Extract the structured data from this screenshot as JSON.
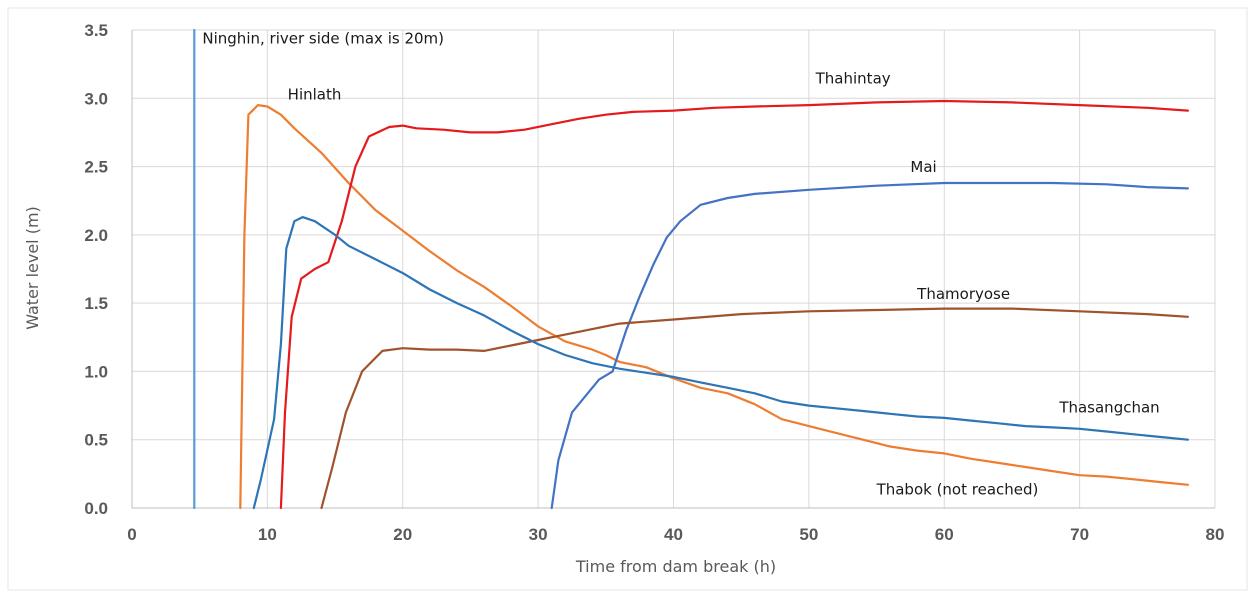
{
  "chart_data": {
    "type": "line",
    "title": "",
    "xlabel": "Time from dam break (h)",
    "ylabel": "Water level (m)",
    "xlim": [
      0,
      80
    ],
    "ylim": [
      0,
      3.5
    ],
    "x_ticks": [
      0,
      10,
      20,
      30,
      40,
      50,
      60,
      70,
      80
    ],
    "y_ticks": [
      0.0,
      0.5,
      1.0,
      1.5,
      2.0,
      2.5,
      3.0,
      3.5
    ],
    "x_tick_labels": [
      "0",
      "10",
      "20",
      "30",
      "40",
      "50",
      "60",
      "70",
      "80"
    ],
    "y_tick_labels": [
      "0.0",
      "0.5",
      "1.0",
      "1.5",
      "2.0",
      "2.5",
      "3.0",
      "3.5"
    ],
    "grid": true,
    "legend": "none",
    "series": [
      {
        "name": "Ninghin, river side (max is 20m)",
        "color": "#5b9bd5",
        "label_at": [
          5.2,
          3.4
        ],
        "points": [
          [
            4.6,
            0
          ],
          [
            4.6,
            3.5
          ]
        ]
      },
      {
        "name": "Hinlath",
        "color": "#ed7d31",
        "label_at": [
          11.5,
          2.99
        ],
        "points": [
          [
            8.0,
            0
          ],
          [
            8.3,
            2.0
          ],
          [
            8.6,
            2.88
          ],
          [
            9.3,
            2.95
          ],
          [
            10.0,
            2.94
          ],
          [
            11,
            2.88
          ],
          [
            12,
            2.78
          ],
          [
            14,
            2.6
          ],
          [
            16,
            2.38
          ],
          [
            18,
            2.18
          ],
          [
            20,
            2.03
          ],
          [
            22,
            1.88
          ],
          [
            24,
            1.74
          ],
          [
            26,
            1.62
          ],
          [
            28,
            1.48
          ],
          [
            30,
            1.33
          ],
          [
            32,
            1.22
          ],
          [
            34,
            1.16
          ],
          [
            35,
            1.12
          ],
          [
            36,
            1.07
          ],
          [
            38,
            1.03
          ],
          [
            40,
            0.95
          ],
          [
            42,
            0.88
          ],
          [
            44,
            0.84
          ],
          [
            46,
            0.76
          ],
          [
            48,
            0.65
          ],
          [
            50,
            0.6
          ],
          [
            52,
            0.55
          ],
          [
            54,
            0.5
          ],
          [
            56,
            0.45
          ],
          [
            58,
            0.42
          ],
          [
            60,
            0.4
          ],
          [
            62,
            0.36
          ],
          [
            64,
            0.33
          ],
          [
            66,
            0.3
          ],
          [
            68,
            0.27
          ],
          [
            70,
            0.24
          ],
          [
            72,
            0.23
          ],
          [
            74,
            0.21
          ],
          [
            76,
            0.19
          ],
          [
            78,
            0.17
          ]
        ]
      },
      {
        "name": "Thahintay",
        "color": "#e41a1c",
        "label_at": [
          50.5,
          3.11
        ],
        "points": [
          [
            11.0,
            0
          ],
          [
            11.3,
            0.7
          ],
          [
            11.8,
            1.4
          ],
          [
            12.5,
            1.68
          ],
          [
            13.5,
            1.75
          ],
          [
            14.5,
            1.8
          ],
          [
            15.5,
            2.1
          ],
          [
            16.5,
            2.5
          ],
          [
            17.5,
            2.72
          ],
          [
            19,
            2.79
          ],
          [
            20,
            2.8
          ],
          [
            21,
            2.78
          ],
          [
            23,
            2.77
          ],
          [
            25,
            2.75
          ],
          [
            27,
            2.75
          ],
          [
            29,
            2.77
          ],
          [
            31,
            2.81
          ],
          [
            33,
            2.85
          ],
          [
            35,
            2.88
          ],
          [
            37,
            2.9
          ],
          [
            40,
            2.91
          ],
          [
            43,
            2.93
          ],
          [
            46,
            2.94
          ],
          [
            50,
            2.95
          ],
          [
            55,
            2.97
          ],
          [
            60,
            2.98
          ],
          [
            65,
            2.97
          ],
          [
            70,
            2.95
          ],
          [
            75,
            2.93
          ],
          [
            78,
            2.91
          ]
        ]
      },
      {
        "name": "Mai",
        "color": "#4472c4",
        "label_at": [
          57.5,
          2.46
        ],
        "points": [
          [
            31.0,
            0
          ],
          [
            31.5,
            0.35
          ],
          [
            32.5,
            0.7
          ],
          [
            34.5,
            0.94
          ],
          [
            35.5,
            1.0
          ],
          [
            36.5,
            1.3
          ],
          [
            37.5,
            1.55
          ],
          [
            38.5,
            1.78
          ],
          [
            39.5,
            1.98
          ],
          [
            40.5,
            2.1
          ],
          [
            42,
            2.22
          ],
          [
            44,
            2.27
          ],
          [
            46,
            2.3
          ],
          [
            50,
            2.33
          ],
          [
            55,
            2.36
          ],
          [
            60,
            2.38
          ],
          [
            65,
            2.38
          ],
          [
            68,
            2.38
          ],
          [
            72,
            2.37
          ],
          [
            75,
            2.35
          ],
          [
            78,
            2.34
          ]
        ]
      },
      {
        "name": "Thamoryose",
        "color": "#a0522d",
        "label_at": [
          58,
          1.53
        ],
        "points": [
          [
            14.0,
            0
          ],
          [
            14.8,
            0.3
          ],
          [
            15.8,
            0.7
          ],
          [
            17,
            1.0
          ],
          [
            18.5,
            1.15
          ],
          [
            20,
            1.17
          ],
          [
            22,
            1.16
          ],
          [
            24,
            1.16
          ],
          [
            26,
            1.15
          ],
          [
            28,
            1.19
          ],
          [
            30,
            1.23
          ],
          [
            32,
            1.27
          ],
          [
            34,
            1.31
          ],
          [
            36,
            1.35
          ],
          [
            40,
            1.38
          ],
          [
            45,
            1.42
          ],
          [
            50,
            1.44
          ],
          [
            55,
            1.45
          ],
          [
            60,
            1.46
          ],
          [
            65,
            1.46
          ],
          [
            70,
            1.44
          ],
          [
            75,
            1.42
          ],
          [
            78,
            1.4
          ]
        ]
      },
      {
        "name": "Thasangchan",
        "color": "#2e75b6",
        "label_at": [
          68.5,
          0.7
        ],
        "points": [
          [
            9.0,
            0
          ],
          [
            9.5,
            0.2
          ],
          [
            10.5,
            0.65
          ],
          [
            11.0,
            1.2
          ],
          [
            11.4,
            1.9
          ],
          [
            12.0,
            2.1
          ],
          [
            12.6,
            2.13
          ],
          [
            13.5,
            2.1
          ],
          [
            15,
            2.0
          ],
          [
            16,
            1.92
          ],
          [
            18,
            1.82
          ],
          [
            20,
            1.72
          ],
          [
            22,
            1.6
          ],
          [
            24,
            1.5
          ],
          [
            26,
            1.41
          ],
          [
            28,
            1.3
          ],
          [
            30,
            1.2
          ],
          [
            32,
            1.12
          ],
          [
            34,
            1.06
          ],
          [
            36,
            1.02
          ],
          [
            38,
            0.99
          ],
          [
            40,
            0.96
          ],
          [
            42,
            0.92
          ],
          [
            44,
            0.88
          ],
          [
            46,
            0.84
          ],
          [
            48,
            0.78
          ],
          [
            50,
            0.75
          ],
          [
            52,
            0.73
          ],
          [
            54,
            0.71
          ],
          [
            56,
            0.69
          ],
          [
            58,
            0.67
          ],
          [
            60,
            0.66
          ],
          [
            62,
            0.64
          ],
          [
            64,
            0.62
          ],
          [
            66,
            0.6
          ],
          [
            68,
            0.59
          ],
          [
            70,
            0.58
          ],
          [
            72,
            0.56
          ],
          [
            74,
            0.54
          ],
          [
            76,
            0.52
          ],
          [
            78,
            0.5
          ]
        ]
      }
    ],
    "annotations": [
      {
        "text": "Thabok (not reached)",
        "at": [
          55,
          0.1
        ]
      }
    ]
  }
}
